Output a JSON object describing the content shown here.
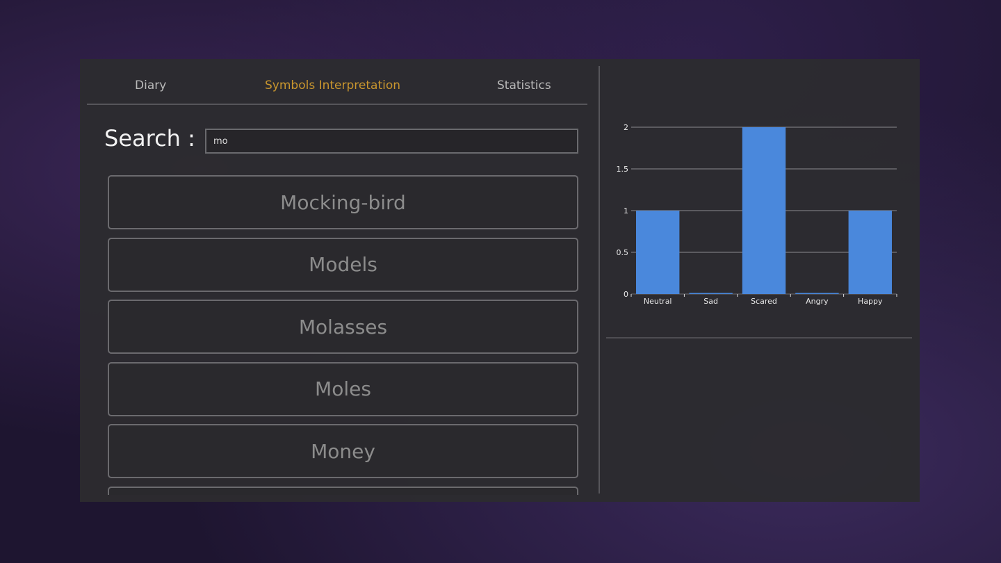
{
  "tabs": [
    {
      "label": "Diary",
      "active": false
    },
    {
      "label": "Symbols Interpretation",
      "active": true
    },
    {
      "label": "Statistics",
      "active": false
    }
  ],
  "search": {
    "label": "Search :",
    "value": "mo"
  },
  "results": [
    "Mocking-bird",
    "Models",
    "Molasses",
    "Moles",
    "Money",
    ""
  ],
  "colors": {
    "accent": "#c9962e",
    "bar": "#4a88dc"
  },
  "chart_data": {
    "type": "bar",
    "categories": [
      "Neutral",
      "Sad",
      "Scared",
      "Angry",
      "Happy"
    ],
    "values": [
      1,
      0,
      2,
      0,
      1
    ],
    "ylim": [
      0,
      2
    ],
    "yticks": [
      "0",
      "0.5",
      "1",
      "1.5",
      "2"
    ],
    "grid": true
  }
}
